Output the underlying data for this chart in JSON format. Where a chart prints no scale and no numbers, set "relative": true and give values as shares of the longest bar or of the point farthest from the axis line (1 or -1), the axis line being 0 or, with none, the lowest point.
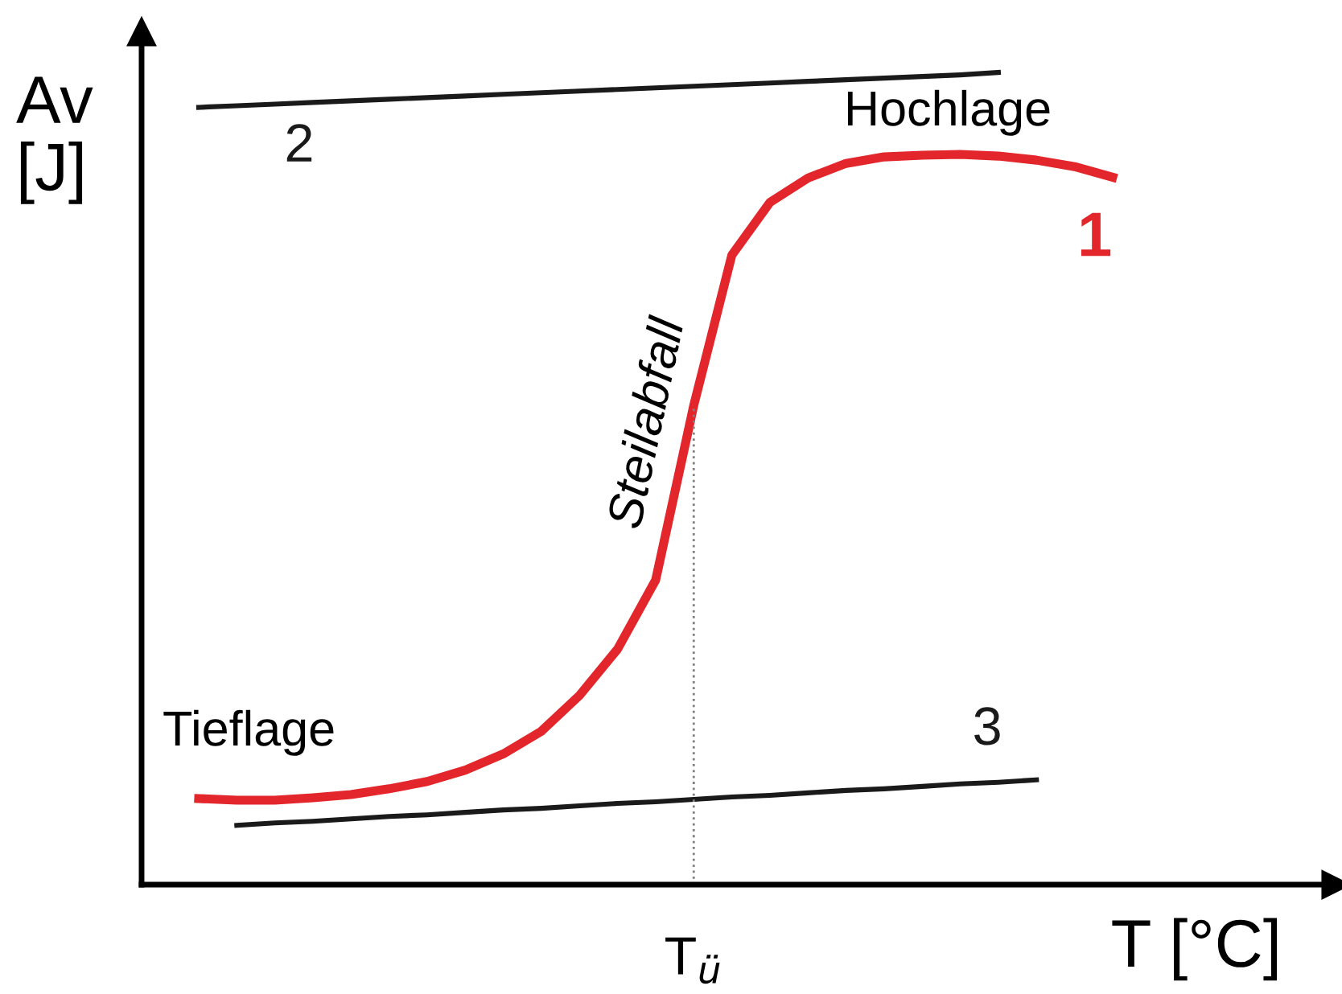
{
  "chart_data": {
    "type": "line",
    "relative": true,
    "xlabel": "T [°C]",
    "ylabel": "Av\n[J]",
    "categories": [
      null,
      null,
      null,
      null,
      null,
      null,
      null,
      null,
      null,
      null,
      null,
      null,
      null,
      null,
      null,
      null,
      null,
      null,
      null,
      null,
      null,
      null,
      null,
      null,
      null,
      null
    ],
    "series": [
      {
        "name": "1",
        "color": "#e3262b",
        "values": [
          null,
          0.106,
          0.104,
          0.104,
          0.107,
          0.111,
          0.118,
          0.127,
          0.141,
          0.161,
          0.189,
          0.233,
          0.29,
          0.375,
          0.59,
          0.775,
          0.84,
          0.87,
          0.888,
          0.896,
          0.898,
          0.899,
          0.897,
          0.892,
          0.884,
          0.871
        ]
      },
      {
        "name": "2",
        "color": "#1a1a1a",
        "values": [
          null,
          0.957,
          0.959,
          0.961,
          0.963,
          0.965,
          0.967,
          0.969,
          0.971,
          0.973,
          0.975,
          0.977,
          0.979,
          0.981,
          0.983,
          0.985,
          0.987,
          0.989,
          0.991,
          0.993,
          0.995,
          0.997,
          1.0,
          null,
          null,
          null
        ]
      },
      {
        "name": "3",
        "color": "#1a1a1a",
        "values": [
          null,
          null,
          0.073,
          0.076,
          0.078,
          0.081,
          0.084,
          0.086,
          0.089,
          0.092,
          0.094,
          0.097,
          0.1,
          0.102,
          0.105,
          0.108,
          0.11,
          0.113,
          0.116,
          0.118,
          0.121,
          0.124,
          0.126,
          0.129,
          null,
          null
        ]
      }
    ],
    "annotations": [
      "Hochlage",
      "Tieflage",
      "Steilabfall",
      "T$_{ü}$"
    ],
    "grid": false,
    "legend": false
  }
}
